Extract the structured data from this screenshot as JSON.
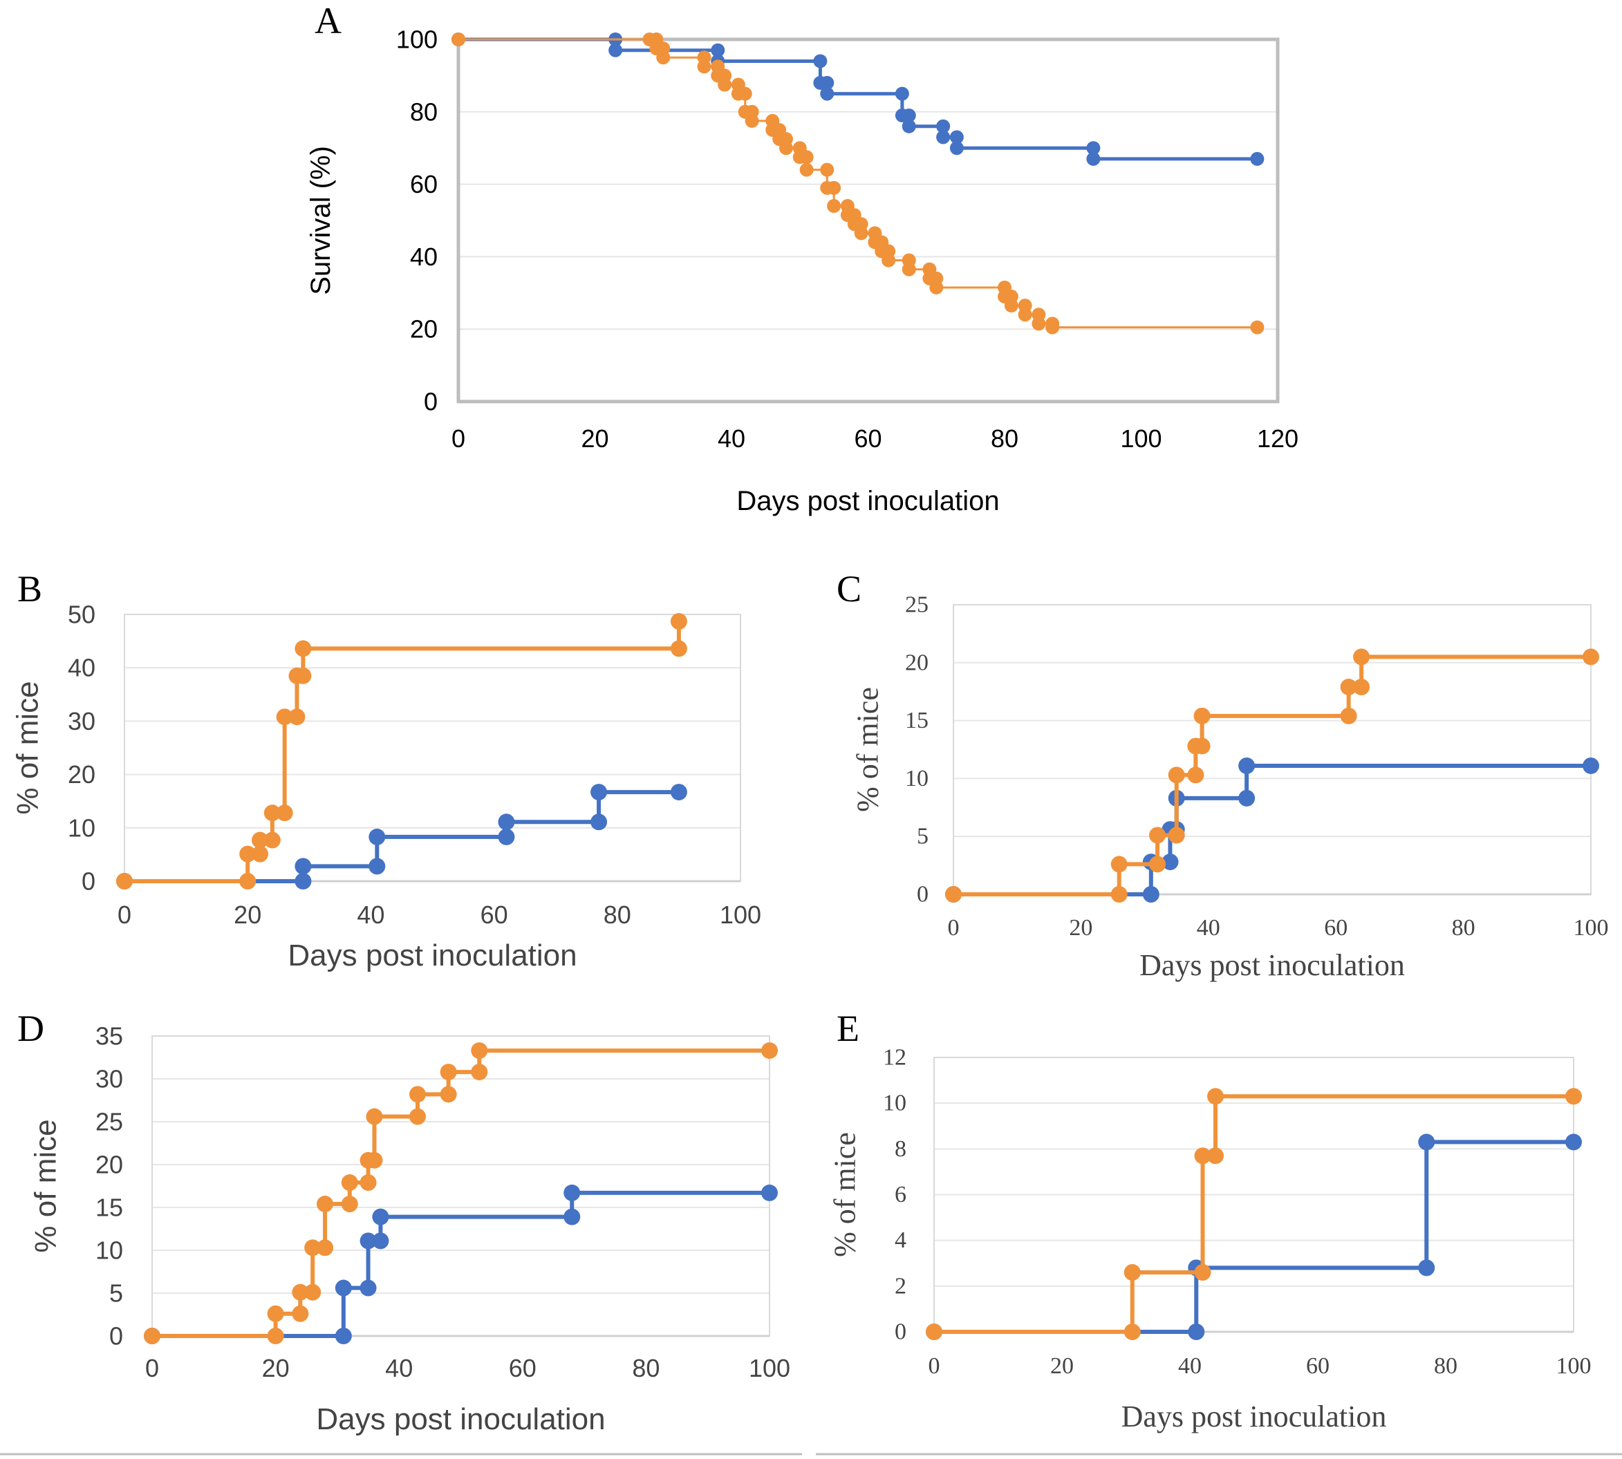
{
  "colors": {
    "blue": "#4472c4",
    "orange": "#f0923a"
  },
  "chart_data": [
    {
      "panel": "A",
      "type": "line",
      "step": true,
      "xlabel": "Days  post inoculation",
      "ylabel": "Survival (%)",
      "xlim": [
        0,
        120
      ],
      "ylim": [
        0,
        100
      ],
      "xticks": [
        "0",
        "20",
        "40",
        "60",
        "80",
        "100",
        "120"
      ],
      "yticks": [
        "0",
        "20",
        "40",
        "60",
        "80",
        "100"
      ],
      "grid": true,
      "series": [
        {
          "name": "blue",
          "color": "#4472c4",
          "x": [
            0,
            23,
            38,
            53,
            54,
            65,
            66,
            71,
            73,
            93,
            117
          ],
          "y": [
            100,
            97,
            94,
            88,
            85,
            79,
            76,
            73,
            70,
            67,
            67
          ]
        },
        {
          "name": "orange",
          "color": "#f0923a",
          "x": [
            0,
            28,
            29,
            30,
            36,
            38,
            39,
            41,
            42,
            43,
            46,
            47,
            48,
            50,
            51,
            54,
            55,
            57,
            58,
            59,
            61,
            62,
            63,
            66,
            69,
            70,
            80,
            81,
            83,
            85,
            87,
            117
          ],
          "y": [
            100,
            100,
            97.5,
            95,
            92.5,
            90,
            87.5,
            85,
            80,
            77.5,
            75,
            72.5,
            70,
            67.5,
            64,
            59,
            54,
            51.5,
            49,
            46.5,
            44,
            41.5,
            39,
            36.5,
            34,
            31.5,
            29,
            26.5,
            24,
            21.5,
            20.5,
            20.5
          ]
        }
      ]
    },
    {
      "panel": "B",
      "type": "line",
      "step": true,
      "xlabel": "Days  post inoculation",
      "ylabel": "% of mice",
      "xlim": [
        0,
        100
      ],
      "ylim": [
        0,
        50
      ],
      "xticks": [
        "0",
        "20",
        "40",
        "60",
        "80",
        "100"
      ],
      "yticks": [
        "0",
        "10",
        "20",
        "30",
        "40",
        "50"
      ],
      "grid": true,
      "series": [
        {
          "name": "blue",
          "color": "#4472c4",
          "x": [
            0,
            29,
            41,
            62,
            77,
            90
          ],
          "y": [
            0,
            2.8,
            8.3,
            11.1,
            16.7,
            16.7
          ]
        },
        {
          "name": "orange",
          "color": "#f0923a",
          "x": [
            0,
            20,
            22,
            24,
            26,
            28,
            29,
            90
          ],
          "y": [
            0,
            5.1,
            7.7,
            12.8,
            30.8,
            38.5,
            43.6,
            48.7
          ]
        }
      ]
    },
    {
      "panel": "C",
      "type": "line",
      "step": true,
      "xlabel": "Days  post inoculation",
      "ylabel": "% of mice",
      "xlim": [
        0,
        100
      ],
      "ylim": [
        0,
        25
      ],
      "xticks": [
        "0",
        "20",
        "40",
        "60",
        "80",
        "100"
      ],
      "yticks": [
        "0",
        "5",
        "10",
        "15",
        "20",
        "25"
      ],
      "grid": true,
      "series": [
        {
          "name": "blue",
          "color": "#4472c4",
          "x": [
            0,
            31,
            34,
            35,
            46,
            100
          ],
          "y": [
            0,
            2.8,
            5.6,
            8.3,
            11.1,
            11.1
          ]
        },
        {
          "name": "orange",
          "color": "#f0923a",
          "x": [
            0,
            26,
            32,
            35,
            38,
            39,
            62,
            64,
            100
          ],
          "y": [
            0,
            2.6,
            5.1,
            10.3,
            12.8,
            15.4,
            17.9,
            20.5,
            20.5
          ]
        }
      ]
    },
    {
      "panel": "D",
      "type": "line",
      "step": true,
      "xlabel": "Days  post inoculation",
      "ylabel": "% of mice",
      "xlim": [
        0,
        100
      ],
      "ylim": [
        0,
        35
      ],
      "xticks": [
        "0",
        "20",
        "40",
        "60",
        "80",
        "100"
      ],
      "yticks": [
        "0",
        "5",
        "10",
        "15",
        "20",
        "25",
        "30",
        "35"
      ],
      "grid": true,
      "series": [
        {
          "name": "blue",
          "color": "#4472c4",
          "x": [
            0,
            31,
            35,
            37,
            68,
            100
          ],
          "y": [
            0,
            5.6,
            11.1,
            13.9,
            16.7,
            16.7
          ]
        },
        {
          "name": "orange",
          "color": "#f0923a",
          "x": [
            0,
            20,
            24,
            26,
            28,
            32,
            35,
            36,
            43,
            48,
            53,
            100
          ],
          "y": [
            0,
            2.6,
            5.1,
            10.3,
            15.4,
            17.9,
            20.5,
            25.6,
            28.2,
            30.8,
            33.3,
            33.3
          ]
        }
      ]
    },
    {
      "panel": "E",
      "type": "line",
      "step": true,
      "xlabel": "Days  post inoculation",
      "ylabel": "% of mice",
      "xlim": [
        0,
        100
      ],
      "ylim": [
        0,
        12
      ],
      "xticks": [
        "0",
        "20",
        "40",
        "60",
        "80",
        "100"
      ],
      "yticks": [
        "0",
        "2",
        "4",
        "6",
        "8",
        "10",
        "12"
      ],
      "grid": true,
      "series": [
        {
          "name": "blue",
          "color": "#4472c4",
          "x": [
            0,
            41,
            77,
            100
          ],
          "y": [
            0,
            2.8,
            8.3,
            8.3
          ]
        },
        {
          "name": "orange",
          "color": "#f0923a",
          "x": [
            0,
            31,
            42,
            44,
            100
          ],
          "y": [
            0,
            2.6,
            7.7,
            10.3,
            10.3
          ]
        }
      ]
    }
  ]
}
